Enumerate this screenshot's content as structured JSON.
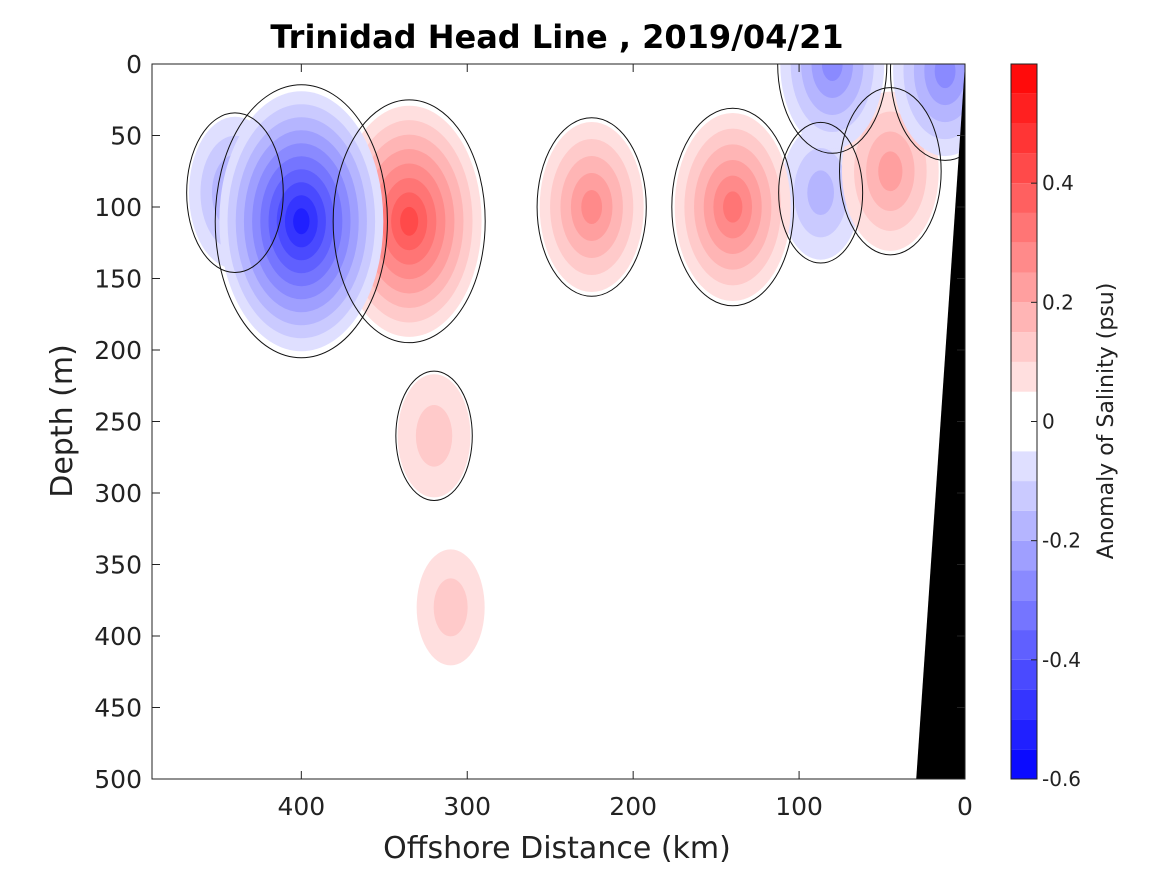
{
  "chart_data": {
    "type": "heatmap",
    "title": "Trinidad Head Line , 2019/04/21",
    "xlabel": "Offshore Distance (km)",
    "ylabel": "Depth (m)",
    "colorbar_label": "Anomaly of Salinity (psu)",
    "x_axis": {
      "range": [
        490,
        0
      ],
      "reversed": true,
      "ticks": [
        400,
        300,
        200,
        100,
        0
      ],
      "tick_labels": [
        "400",
        "300",
        "200",
        "100",
        "0"
      ]
    },
    "y_axis": {
      "range": [
        0,
        500
      ],
      "reversed": true,
      "ticks": [
        0,
        50,
        100,
        150,
        200,
        250,
        300,
        350,
        400,
        450,
        500
      ],
      "tick_labels": [
        "0",
        "50",
        "100",
        "150",
        "200",
        "250",
        "300",
        "350",
        "400",
        "450",
        "500"
      ]
    },
    "colorbar": {
      "range": [
        -0.6,
        0.6
      ],
      "ticks": [
        0.4,
        0.2,
        0,
        -0.2,
        -0.4,
        -0.6
      ],
      "tick_labels": [
        "0.4",
        "0.2",
        "0",
        "-0.2",
        "-0.4",
        "-0.6"
      ],
      "levels": 24,
      "negative_color": "#0000ff",
      "positive_color": "#ff0000",
      "zero_color": "#ffffff"
    },
    "colormap": "blue-white-red",
    "bathymetry_color": "#000000",
    "anomaly_features": [
      {
        "x_km": 400,
        "depth_m": 110,
        "value": -0.5
      },
      {
        "x_km": 440,
        "depth_m": 90,
        "value": -0.2
      },
      {
        "x_km": 87,
        "depth_m": 90,
        "value": -0.15
      },
      {
        "x_km": 80,
        "depth_m": 0,
        "value": -0.25
      },
      {
        "x_km": 12,
        "depth_m": 5,
        "value": -0.25
      },
      {
        "x_km": 335,
        "depth_m": 110,
        "value": 0.42
      },
      {
        "x_km": 320,
        "depth_m": 260,
        "value": 0.12
      },
      {
        "x_km": 310,
        "depth_m": 380,
        "value": 0.1
      },
      {
        "x_km": 225,
        "depth_m": 100,
        "value": 0.25
      },
      {
        "x_km": 140,
        "depth_m": 100,
        "value": 0.3
      },
      {
        "x_km": 45,
        "depth_m": 75,
        "value": 0.22
      }
    ],
    "grid": false,
    "legend": "colorbar-right"
  }
}
